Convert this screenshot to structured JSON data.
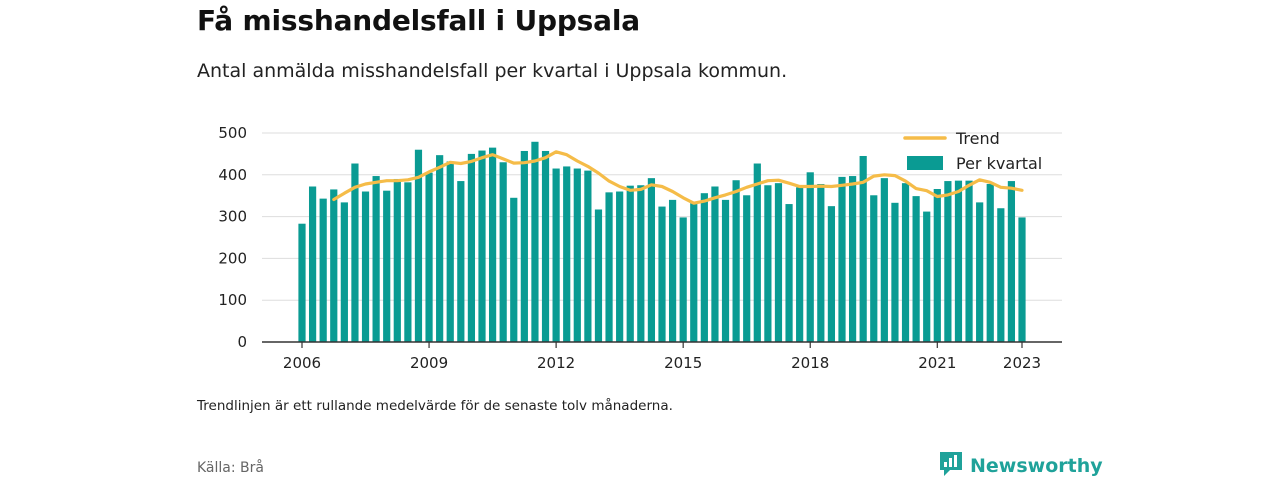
{
  "header": {
    "title": "Få misshandelsfall i Uppsala",
    "subtitle": "Antal anmälda misshandelsfall per kvartal i Uppsala kommun."
  },
  "footer": {
    "note": "Trendlinjen är ett rullande medelvärde för de senaste tolv månaderna.",
    "source": "Källa: Brå",
    "brand": "Newsworthy",
    "brand_icon": "newsworthy-logo-icon"
  },
  "colors": {
    "bars": "#0a9b93",
    "trend": "#f5bc48",
    "grid": "#dddddd",
    "axis": "#333333"
  },
  "chart_data": {
    "type": "bar",
    "title": "",
    "xlabel": "",
    "ylabel": "",
    "ylim": [
      0,
      500
    ],
    "yticks": [
      0,
      100,
      200,
      300,
      400,
      500
    ],
    "xticks": [
      "2006",
      "2009",
      "2012",
      "2015",
      "2018",
      "2021",
      "2023"
    ],
    "grid": true,
    "legend": "top-right",
    "x_start": 2006.0,
    "x_step": 0.25,
    "series": [
      {
        "name": "Per kvartal",
        "values": [
          283,
          372,
          343,
          365,
          334,
          427,
          360,
          397,
          362,
          390,
          382,
          460,
          405,
          447,
          432,
          385,
          450,
          458,
          465,
          430,
          345,
          457,
          479,
          457,
          415,
          420,
          415,
          410,
          317,
          358,
          360,
          374,
          375,
          392,
          324,
          340,
          298,
          332,
          356,
          372,
          340,
          387,
          351,
          427,
          375,
          380,
          330,
          370,
          406,
          378,
          325,
          395,
          397,
          445,
          351,
          392,
          333,
          380,
          349,
          312,
          366,
          385,
          386,
          386,
          334,
          378,
          320,
          385,
          298
        ]
      },
      {
        "name": "Trend",
        "values": [
          null,
          null,
          null,
          341,
          356,
          370,
          378,
          382,
          386,
          386,
          388,
          394,
          407,
          418,
          430,
          427,
          432,
          441,
          448,
          438,
          428,
          429,
          433,
          441,
          455,
          448,
          433,
          420,
          404,
          385,
          372,
          363,
          365,
          376,
          372,
          360,
          345,
          332,
          337,
          345,
          352,
          360,
          370,
          378,
          386,
          387,
          380,
          372,
          372,
          373,
          372,
          375,
          378,
          382,
          397,
          400,
          398,
          385,
          367,
          362,
          348,
          352,
          360,
          375,
          388,
          382,
          370,
          368,
          363
        ]
      }
    ]
  }
}
